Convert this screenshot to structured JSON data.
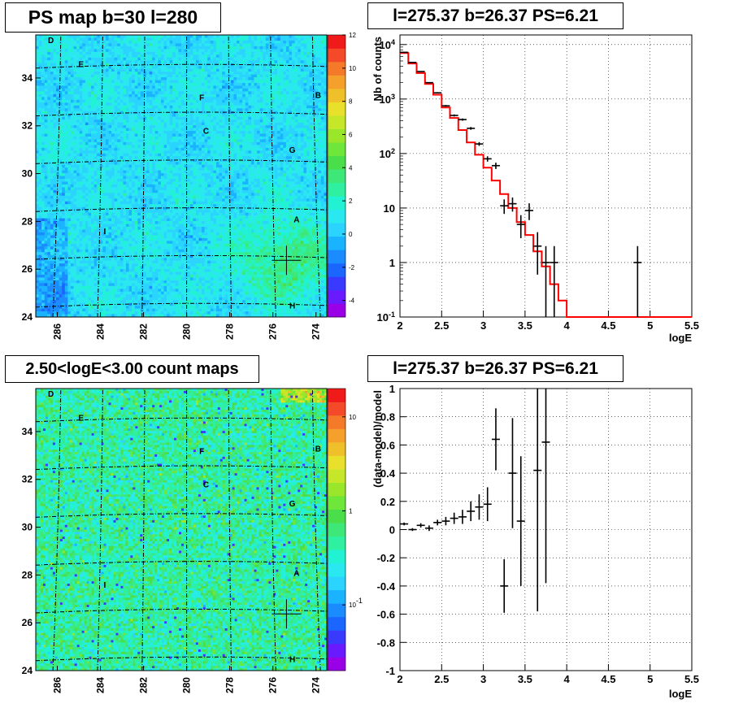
{
  "titles": {
    "map1": "PS map b=30 l=280",
    "spec": "l=275.37 b=26.37 PS=6.21",
    "map2": "2.50<logE<3.00 count maps",
    "resid": "l=275.37 b=26.37 PS=6.21"
  },
  "colors": {
    "data": "#000000",
    "model": "#ff0000",
    "grid": "#000000"
  },
  "chart_data": [
    {
      "type": "heatmap",
      "title": "PS map b=30 l=280",
      "x_ticks": [
        "286",
        "284",
        "282",
        "280",
        "278",
        "276",
        "274"
      ],
      "y_ticks": [
        "24",
        "26",
        "28",
        "30",
        "32",
        "34"
      ],
      "xlim": [
        287,
        273.5
      ],
      "ylim": [
        24,
        35.8
      ],
      "colorbar": {
        "min": -5,
        "max": 12,
        "ticks": [
          "-4",
          "-2",
          "0",
          "2",
          "4",
          "6",
          "8",
          "10",
          "12"
        ]
      },
      "labeled_sources": [
        {
          "name": "D",
          "l": 286.3,
          "b": 35.6
        },
        {
          "name": "E",
          "l": 284.9,
          "b": 34.6
        },
        {
          "name": "F",
          "l": 279.3,
          "b": 33.2
        },
        {
          "name": "B",
          "l": 273.9,
          "b": 33.3
        },
        {
          "name": "C",
          "l": 279.1,
          "b": 31.8
        },
        {
          "name": "G",
          "l": 275.1,
          "b": 31.0
        },
        {
          "name": "A",
          "l": 274.9,
          "b": 28.1
        },
        {
          "name": "I",
          "l": 283.8,
          "b": 27.6
        },
        {
          "name": "H",
          "l": 275.1,
          "b": 24.5
        }
      ],
      "marker": {
        "l": 275.37,
        "b": 26.37
      }
    },
    {
      "type": "line",
      "title": "l=275.37 b=26.37 PS=6.21",
      "xlabel": "logE",
      "ylabel": "Nb of counts",
      "xlim": [
        2,
        5.5
      ],
      "ylim": [
        0.1,
        15000
      ],
      "log_y": true,
      "grid": true,
      "x_ticks": [
        "2",
        "2.5",
        "3",
        "3.5",
        "4",
        "4.5",
        "5",
        "5.5"
      ],
      "y_ticks": [
        "10^-1",
        "1",
        "10",
        "10^2",
        "10^3",
        "10^4"
      ],
      "series": [
        {
          "type": "step",
          "x_edges": [
            2.0,
            2.1,
            2.2,
            2.3,
            2.4,
            2.5,
            2.6,
            2.7,
            2.8,
            2.9,
            3.0,
            3.1,
            3.2,
            3.3,
            3.4,
            3.5,
            3.6,
            3.7,
            3.8,
            3.9,
            4.0,
            5.5
          ],
          "values": [
            7000,
            4500,
            3000,
            1900,
            1200,
            700,
            450,
            270,
            160,
            95,
            55,
            32,
            18,
            10,
            5.5,
            3.2,
            1.6,
            0.85,
            0.4,
            0.2,
            0.1
          ]
        },
        {
          "type": "errorbar",
          "x": [
            2.05,
            2.15,
            2.25,
            2.35,
            2.45,
            2.55,
            2.65,
            2.75,
            2.85,
            2.95,
            3.05,
            3.15,
            3.25,
            3.35,
            3.45,
            3.55,
            3.65,
            3.75,
            3.85,
            4.85
          ],
          "y": [
            7200,
            4700,
            3200,
            2000,
            1300,
            750,
            500,
            420,
            290,
            150,
            80,
            60,
            11,
            12,
            5,
            9,
            2,
            1,
            1,
            1
          ],
          "yerr_lo": [
            85,
            70,
            55,
            45,
            36,
            27,
            22,
            20,
            17,
            12,
            9,
            8,
            3.2,
            3.4,
            2.2,
            3,
            1.4,
            1,
            1,
            1
          ],
          "yerr_hi": [
            85,
            70,
            55,
            45,
            36,
            27,
            22,
            20,
            17,
            12,
            9,
            8,
            3.4,
            3.6,
            2.4,
            3.2,
            1.6,
            1,
            1,
            1
          ]
        }
      ]
    },
    {
      "type": "heatmap",
      "title": "2.50<logE<3.00 count maps",
      "x_ticks": [
        "286",
        "284",
        "282",
        "280",
        "278",
        "276",
        "274"
      ],
      "y_ticks": [
        "24",
        "26",
        "28",
        "30",
        "32",
        "34"
      ],
      "xlim": [
        287,
        273.5
      ],
      "ylim": [
        24,
        35.8
      ],
      "colorbar": {
        "log": true,
        "min": 0.02,
        "max": 20,
        "ticks": [
          "10",
          "1",
          "10^-1"
        ]
      },
      "labeled_sources": [
        {
          "name": "D",
          "l": 286.3,
          "b": 35.6
        },
        {
          "name": "E",
          "l": 284.9,
          "b": 34.6
        },
        {
          "name": "F",
          "l": 279.3,
          "b": 33.2
        },
        {
          "name": "B",
          "l": 273.9,
          "b": 33.3
        },
        {
          "name": "C",
          "l": 279.1,
          "b": 31.8
        },
        {
          "name": "G",
          "l": 275.1,
          "b": 31.0
        },
        {
          "name": "A",
          "l": 274.9,
          "b": 28.1
        },
        {
          "name": "I",
          "l": 283.8,
          "b": 27.6
        },
        {
          "name": "H",
          "l": 275.1,
          "b": 24.5
        }
      ],
      "marker": {
        "l": 275.37,
        "b": 26.37
      }
    },
    {
      "type": "scatter",
      "title": "l=275.37 b=26.37 PS=6.21",
      "xlabel": "logE",
      "ylabel": "(data-model)/model",
      "xlim": [
        2,
        5.5
      ],
      "ylim": [
        -1,
        1
      ],
      "grid": true,
      "x_ticks": [
        "2",
        "2.5",
        "3",
        "3.5",
        "4",
        "4.5",
        "5",
        "5.5"
      ],
      "y_ticks": [
        "-1",
        "-0.8",
        "-0.6",
        "-0.4",
        "-0.2",
        "0",
        "0.2",
        "0.4",
        "0.6",
        "0.8",
        "1"
      ],
      "points": [
        {
          "x": 2.05,
          "y": 0.04,
          "err": 0.01
        },
        {
          "x": 2.15,
          "y": 0.0,
          "err": 0.01
        },
        {
          "x": 2.25,
          "y": 0.03,
          "err": 0.015
        },
        {
          "x": 2.35,
          "y": 0.01,
          "err": 0.02
        },
        {
          "x": 2.45,
          "y": 0.05,
          "err": 0.02
        },
        {
          "x": 2.55,
          "y": 0.06,
          "err": 0.03
        },
        {
          "x": 2.65,
          "y": 0.08,
          "err": 0.04
        },
        {
          "x": 2.75,
          "y": 0.09,
          "err": 0.05
        },
        {
          "x": 2.85,
          "y": 0.13,
          "err": 0.07
        },
        {
          "x": 2.95,
          "y": 0.16,
          "err": 0.09
        },
        {
          "x": 3.05,
          "y": 0.18,
          "err": 0.12
        },
        {
          "x": 3.15,
          "y": 0.64,
          "err": 0.22
        },
        {
          "x": 3.25,
          "y": -0.4,
          "err": 0.19
        },
        {
          "x": 3.35,
          "y": 0.4,
          "err": 0.39
        },
        {
          "x": 3.45,
          "y": 0.06,
          "err": 0.46
        },
        {
          "x": 3.65,
          "y": 0.42,
          "err": 1.0
        },
        {
          "x": 3.75,
          "y": 0.62,
          "err": 1.0
        }
      ]
    }
  ]
}
